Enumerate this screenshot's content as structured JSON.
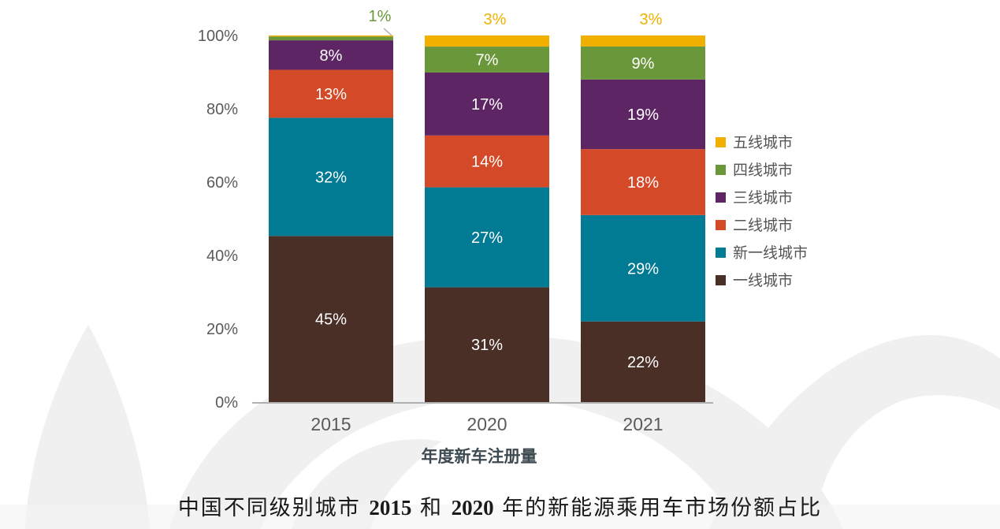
{
  "caption": {
    "part1": "中国不同级别城市 ",
    "year1": "2015",
    "part2": " 和 ",
    "year2": "2020",
    "part3": " 年的新能源乘用车市场份额占比"
  },
  "chart_data": {
    "type": "bar",
    "stacked": true,
    "title": "中国不同级别城市 2015 和 2020 年的新能源乘用车市场份额占比",
    "xlabel": "年度新车注册量",
    "ylabel": "",
    "ylim": [
      0,
      100
    ],
    "yticks": [
      0,
      20,
      40,
      60,
      80,
      100
    ],
    "ytick_labels": [
      "0%",
      "20%",
      "40%",
      "60%",
      "80%",
      "100%"
    ],
    "categories": [
      "2015",
      "2020",
      "2021"
    ],
    "grid": false,
    "legend_position": "right",
    "series": [
      {
        "name": "一线城市",
        "color": "#4a2f27",
        "values": [
          45,
          31,
          22
        ],
        "labels": [
          "45%",
          "31%",
          "22%"
        ]
      },
      {
        "name": "新一线城市",
        "color": "#017a94",
        "values": [
          32,
          27,
          29
        ],
        "labels": [
          "32%",
          "27%",
          "29%"
        ]
      },
      {
        "name": "二线城市",
        "color": "#d44a28",
        "values": [
          13,
          14,
          18
        ],
        "labels": [
          "13%",
          "14%",
          "18%"
        ]
      },
      {
        "name": "三线城市",
        "color": "#5e2564",
        "values": [
          8,
          17,
          19
        ],
        "labels": [
          "8%",
          "17%",
          "19%"
        ]
      },
      {
        "name": "四线城市",
        "color": "#6a973a",
        "values": [
          1,
          7,
          9
        ],
        "labels": [
          "1%",
          "7%",
          "9%"
        ]
      },
      {
        "name": "五线城市",
        "color": "#f1b000",
        "values": [
          0.3,
          3,
          3
        ],
        "labels": [
          "",
          "3%",
          "3%"
        ]
      }
    ],
    "legend_order": [
      "五线城市",
      "四线城市",
      "三线城市",
      "二线城市",
      "新一线城市",
      "一线城市"
    ]
  }
}
